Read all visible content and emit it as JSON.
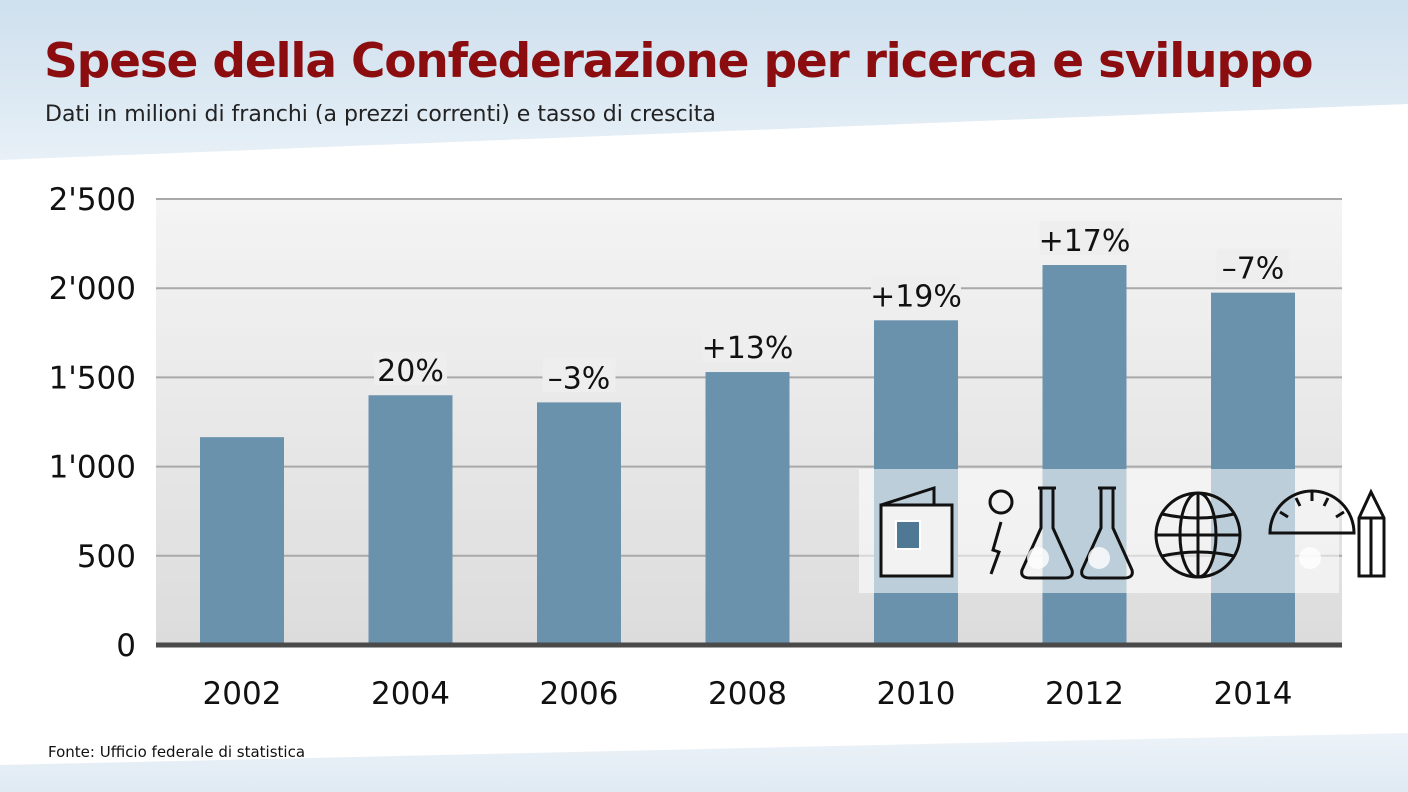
{
  "title": "Spese della Confederazione per ricerca e sviluppo",
  "subtitle": "Dati in milioni di franchi (a prezzi correnti) e tasso di crescita",
  "source": "Fonte: Ufficio federale di statistica",
  "colors": {
    "title": "#8b0d10",
    "bar": "#6a92ad",
    "plot_background": "#e7e7e7",
    "gridline": "#a9a9a9",
    "axis": "#4a4a4a"
  },
  "chart_data": {
    "type": "bar",
    "categories": [
      "2002",
      "2004",
      "2006",
      "2008",
      "2010",
      "2012",
      "2014"
    ],
    "values": [
      1165,
      1400,
      1360,
      1530,
      1820,
      2130,
      1975
    ],
    "data_labels": [
      "",
      "20%",
      "–3%",
      "+13%",
      "+19%",
      "+17%",
      "–7%"
    ],
    "yticks": [
      "0",
      "500",
      "1'000",
      "1'500",
      "2'000",
      "2'500"
    ],
    "ylim": [
      0,
      2500
    ],
    "grid": true
  },
  "decoration": {
    "icons": [
      "book-icon",
      "idea-icon",
      "flask-icon",
      "flask-icon",
      "globe-icon",
      "gauge-icon",
      "pencil-icon"
    ]
  }
}
